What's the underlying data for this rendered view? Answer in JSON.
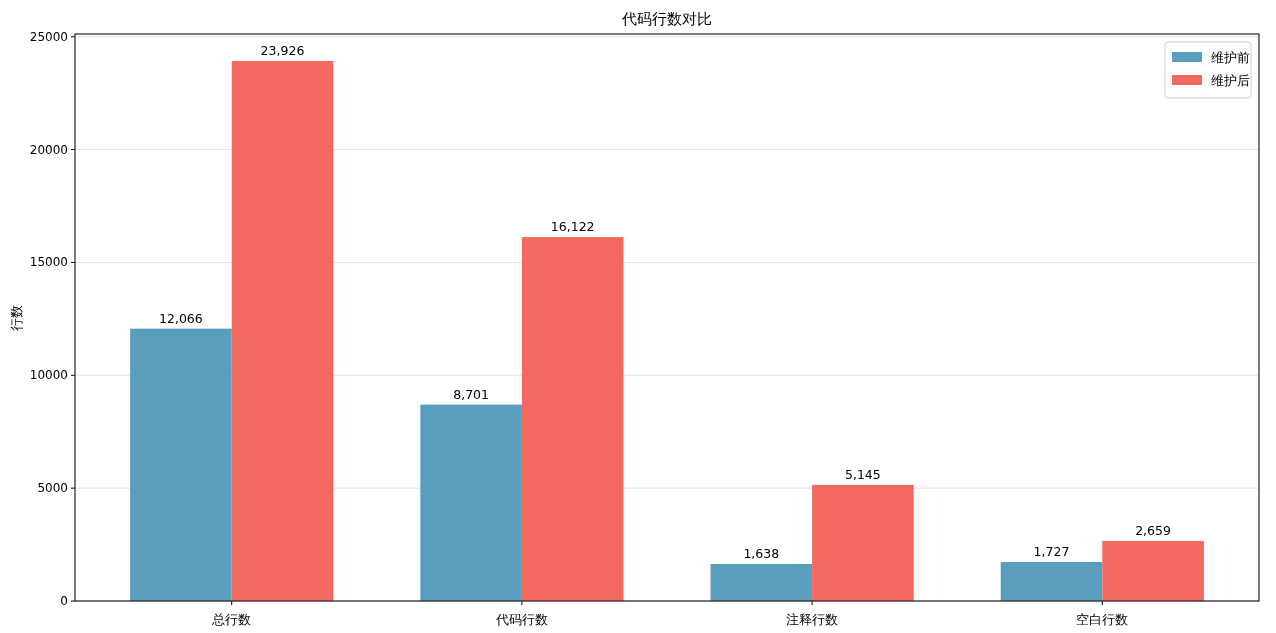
{
  "chart_data": {
    "type": "bar",
    "title": "代码行数对比",
    "ylabel": "行数",
    "categories": [
      "总行数",
      "代码行数",
      "注释行数",
      "空白行数"
    ],
    "series": [
      {
        "name": "维护前",
        "color": "#5a9ebd",
        "values": [
          12066,
          8701,
          1638,
          1727
        ],
        "value_labels": [
          "12,066",
          "8,701",
          "1,638",
          "1,727"
        ]
      },
      {
        "name": "维护后",
        "color": "#f4695f",
        "values": [
          23926,
          16122,
          5145,
          2659
        ],
        "value_labels": [
          "23,926",
          "16,122",
          "5,145",
          "2,659"
        ]
      }
    ],
    "ylim": [
      0,
      25120
    ],
    "yticks": [
      0,
      5000,
      10000,
      15000,
      20000,
      25000
    ],
    "grid": "y",
    "legend": "top right"
  }
}
